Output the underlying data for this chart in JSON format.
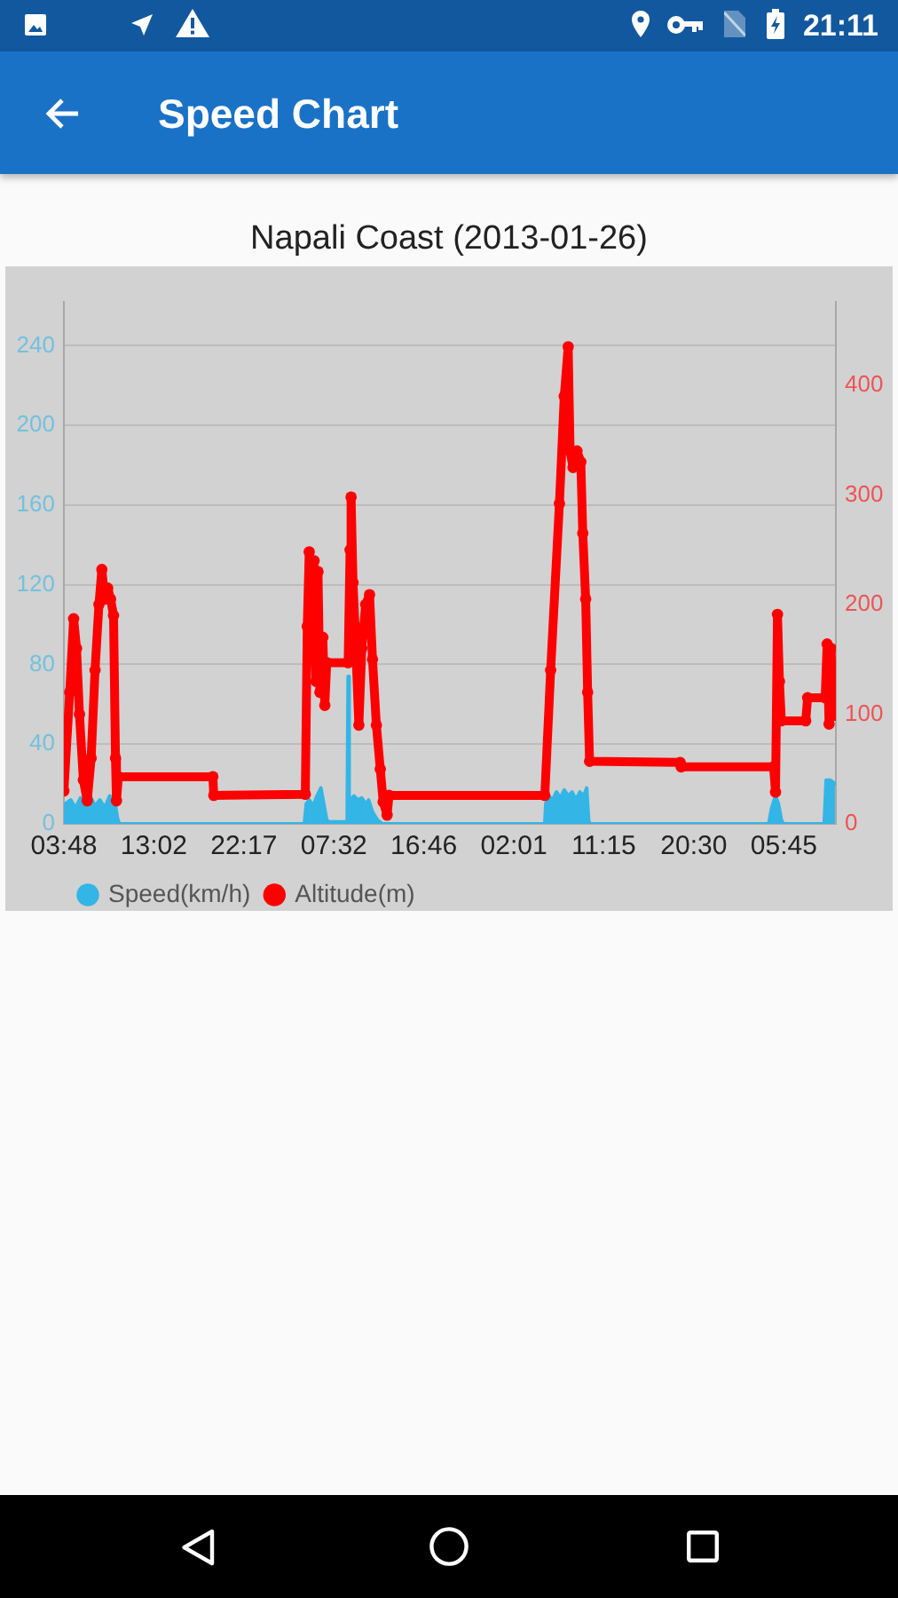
{
  "chart_data": {
    "type": "line",
    "title": "Speed Chart",
    "subtitle": "Napali Coast (2013-01-26)",
    "annotations": [
      "21:11"
    ],
    "xlim": [
      "2013-01-26T03:48",
      "2013-01-29T11:06"
    ],
    "xticks": [
      {
        "value": "2013-01-26T03:48",
        "label": "03:48"
      },
      {
        "value": "2013-01-26T13:02",
        "label": "13:02"
      },
      {
        "value": "2013-01-26T22:17",
        "label": "22:17"
      },
      {
        "value": "2013-01-27T07:32",
        "label": "07:32"
      },
      {
        "value": "2013-01-27T16:46",
        "label": "16:46"
      },
      {
        "value": "2013-01-28T02:01",
        "label": "02:01"
      },
      {
        "value": "2013-01-28T11:15",
        "label": "11:15"
      },
      {
        "value": "2013-01-28T20:30",
        "label": "20:30"
      },
      {
        "value": "2013-01-29T05:45",
        "label": "05:45"
      }
    ],
    "ylim": [
      0,
      262
    ],
    "yticks": [
      0,
      40,
      80,
      120,
      160,
      200,
      240
    ],
    "y2lim": [
      0,
      476
    ],
    "y2ticks": [
      0,
      100,
      200,
      300,
      400
    ],
    "grid": "y",
    "legend": "bottom left",
    "series": [
      {
        "name": "Speed(km/h)",
        "type": "area",
        "color": "#33b5e5",
        "marker": "none",
        "x": [
          "2013-01-26T03:48",
          "2013-01-26T03:54",
          "2013-01-26T04:30",
          "2013-01-26T05:00",
          "2013-01-26T05:30",
          "2013-01-26T06:00",
          "2013-01-26T06:30",
          "2013-01-26T07:00",
          "2013-01-26T07:30",
          "2013-01-26T08:00",
          "2013-01-26T08:30",
          "2013-01-26T09:00",
          "2013-01-26T09:18",
          "2013-01-26T09:30",
          "2013-01-27T04:30",
          "2013-01-27T04:42",
          "2013-01-27T05:00",
          "2013-01-27T05:24",
          "2013-01-27T05:48",
          "2013-01-27T06:12",
          "2013-01-27T06:30",
          "2013-01-27T06:48",
          "2013-01-27T07:00",
          "2013-01-27T08:54",
          "2013-01-27T09:00",
          "2013-01-27T09:06",
          "2013-01-27T09:12",
          "2013-01-27T09:36",
          "2013-01-27T10:00",
          "2013-01-27T10:24",
          "2013-01-27T10:48",
          "2013-01-27T11:06",
          "2013-01-27T11:30",
          "2013-01-27T12:00",
          "2013-01-27T12:30",
          "2013-01-28T05:12",
          "2013-01-28T05:18",
          "2013-01-28T05:36",
          "2013-01-28T06:00",
          "2013-01-28T06:24",
          "2013-01-28T06:48",
          "2013-01-28T07:12",
          "2013-01-28T07:36",
          "2013-01-28T08:00",
          "2013-01-28T08:24",
          "2013-01-28T08:48",
          "2013-01-28T09:12",
          "2013-01-28T09:30",
          "2013-01-28T09:42",
          "2013-01-28T09:48",
          "2013-01-29T04:12",
          "2013-01-29T04:30",
          "2013-01-29T04:54",
          "2013-01-29T05:12",
          "2013-01-29T05:30",
          "2013-01-29T05:42",
          "2013-01-29T09:54",
          "2013-01-29T10:06",
          "2013-01-29T10:30",
          "2013-01-29T10:48",
          "2013-01-29T11:00"
        ],
        "values": [
          0,
          10,
          12,
          8,
          13,
          10,
          14,
          9,
          12,
          8,
          14,
          12,
          3,
          0,
          0,
          10,
          12,
          9,
          14,
          18,
          10,
          2,
          1,
          1,
          74,
          2,
          12,
          14,
          12,
          13,
          10,
          12,
          6,
          2,
          0,
          0,
          10,
          14,
          12,
          16,
          13,
          17,
          14,
          16,
          12,
          16,
          14,
          18,
          2,
          0,
          0,
          8,
          14,
          10,
          2,
          0,
          0,
          22,
          22,
          21,
          20
        ]
      },
      {
        "name": "Altitude(m)",
        "type": "line",
        "axis": "y2",
        "color": "#ff0000",
        "marker": "circle",
        "line_style": "solid",
        "x": [
          "2013-01-26T03:48",
          "2013-01-26T04:24",
          "2013-01-26T04:48",
          "2013-01-26T05:06",
          "2013-01-26T05:24",
          "2013-01-26T05:48",
          "2013-01-26T06:12",
          "2013-01-26T06:36",
          "2013-01-26T07:00",
          "2013-01-26T07:24",
          "2013-01-26T07:42",
          "2013-01-26T08:00",
          "2013-01-26T08:18",
          "2013-01-26T08:36",
          "2013-01-26T08:54",
          "2013-01-26T09:06",
          "2013-01-26T09:12",
          "2013-01-26T09:24",
          "2013-01-26T19:06",
          "2013-01-26T19:12",
          "2013-01-27T04:36",
          "2013-01-27T04:48",
          "2013-01-27T05:00",
          "2013-01-27T05:12",
          "2013-01-27T05:18",
          "2013-01-27T05:30",
          "2013-01-27T05:42",
          "2013-01-27T05:54",
          "2013-01-27T06:06",
          "2013-01-27T06:24",
          "2013-01-27T06:36",
          "2013-01-27T06:48",
          "2013-01-27T09:00",
          "2013-01-27T09:12",
          "2013-01-27T09:18",
          "2013-01-27T09:30",
          "2013-01-27T09:42",
          "2013-01-27T10:06",
          "2013-01-27T10:24",
          "2013-01-27T10:48",
          "2013-01-27T11:12",
          "2013-01-27T11:30",
          "2013-01-27T11:54",
          "2013-01-27T12:18",
          "2013-01-27T12:36",
          "2013-01-27T13:00",
          "2013-01-27T13:12",
          "2013-01-28T05:12",
          "2013-01-28T05:48",
          "2013-01-28T06:42",
          "2013-01-28T07:12",
          "2013-01-28T07:36",
          "2013-01-28T07:48",
          "2013-01-28T08:06",
          "2013-01-28T08:30",
          "2013-01-28T08:54",
          "2013-01-28T09:06",
          "2013-01-28T09:24",
          "2013-01-28T09:36",
          "2013-01-28T09:48",
          "2013-01-28T19:06",
          "2013-01-28T19:12",
          "2013-01-29T04:42",
          "2013-01-29T04:54",
          "2013-01-29T05:06",
          "2013-01-29T05:18",
          "2013-01-29T05:30",
          "2013-01-29T08:00",
          "2013-01-29T08:12",
          "2013-01-29T10:00",
          "2013-01-29T10:12",
          "2013-01-29T10:24",
          "2013-01-29T10:36",
          "2013-01-29T10:48",
          "2013-01-29T11:00"
        ],
        "values": [
          30,
          120,
          187,
          160,
          100,
          40,
          21,
          60,
          140,
          200,
          232,
          205,
          215,
          205,
          190,
          60,
          21,
          43,
          43,
          26,
          27,
          180,
          248,
          150,
          200,
          240,
          130,
          230,
          120,
          170,
          108,
          147,
          147,
          250,
          298,
          220,
          180,
          90,
          160,
          200,
          209,
          150,
          90,
          50,
          20,
          8,
          26,
          26,
          140,
          292,
          390,
          435,
          340,
          325,
          340,
          330,
          265,
          205,
          120,
          57,
          56,
          52,
          52,
          29,
          191,
          130,
          94,
          94,
          115,
          115,
          164,
          91,
          160,
          110,
          99
        ]
      }
    ]
  }
}
